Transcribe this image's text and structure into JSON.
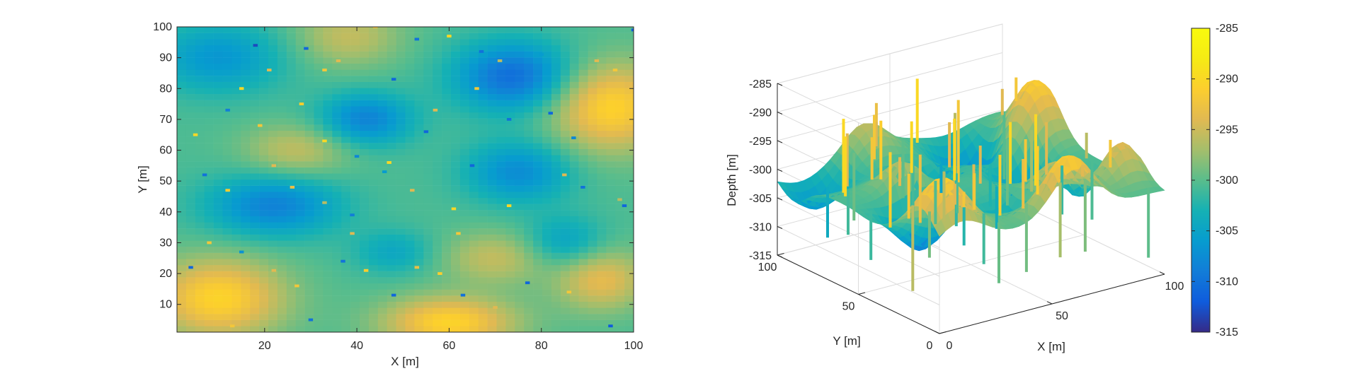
{
  "chart_data": [
    {
      "type": "heatmap",
      "title": "",
      "xlabel": "X [m]",
      "ylabel": "Y [m]",
      "xlim": [
        1,
        100
      ],
      "ylim": [
        1,
        100
      ],
      "xticks": [
        20,
        40,
        60,
        80,
        100
      ],
      "yticks": [
        10,
        20,
        30,
        40,
        50,
        60,
        70,
        80,
        90,
        100
      ],
      "colormap": "parula",
      "clim": [
        -315,
        -285
      ],
      "grid": false,
      "field": {
        "base": -300.5,
        "description_free_bumps": [
          {
            "x": 10,
            "y": 12,
            "amp": 10,
            "sx": 10,
            "sy": 9
          },
          {
            "x": 95,
            "y": 74,
            "amp": 10,
            "sx": 9,
            "sy": 10
          },
          {
            "x": 38,
            "y": 97,
            "amp": 5,
            "sx": 8,
            "sy": 7
          },
          {
            "x": 60,
            "y": 4,
            "amp": 10,
            "sx": 10,
            "sy": 6
          },
          {
            "x": 27,
            "y": 60,
            "amp": 5,
            "sx": 8,
            "sy": 6
          },
          {
            "x": 70,
            "y": 25,
            "amp": 5,
            "sx": 8,
            "sy": 6
          },
          {
            "x": 93,
            "y": 18,
            "amp": 7,
            "sx": 7,
            "sy": 7
          },
          {
            "x": 74,
            "y": 84,
            "amp": -10,
            "sx": 9,
            "sy": 8
          },
          {
            "x": 42,
            "y": 70,
            "amp": -8,
            "sx": 7,
            "sy": 6
          },
          {
            "x": 22,
            "y": 42,
            "amp": -8,
            "sx": 10,
            "sy": 7
          },
          {
            "x": 75,
            "y": 53,
            "amp": -7,
            "sx": 8,
            "sy": 7
          },
          {
            "x": 10,
            "y": 90,
            "amp": -6,
            "sx": 10,
            "sy": 8
          },
          {
            "x": 85,
            "y": 30,
            "amp": -5,
            "sx": 6,
            "sy": 6
          },
          {
            "x": 48,
            "y": 27,
            "amp": -4,
            "sx": 6,
            "sy": 5
          }
        ]
      },
      "outliers": [
        [
          18,
          94,
          -313
        ],
        [
          29,
          93,
          -311
        ],
        [
          36,
          89,
          -294
        ],
        [
          44,
          100,
          -293
        ],
        [
          15,
          80,
          -290
        ],
        [
          33,
          86,
          -292
        ],
        [
          48,
          83,
          -311
        ],
        [
          53,
          96,
          -310
        ],
        [
          60,
          97,
          -290
        ],
        [
          67,
          92,
          -310
        ],
        [
          71,
          89,
          -296
        ],
        [
          80,
          91,
          -306
        ],
        [
          92,
          89,
          -294
        ],
        [
          5,
          65,
          -290
        ],
        [
          12,
          73,
          -309
        ],
        [
          19,
          68,
          -292
        ],
        [
          28,
          75,
          -291
        ],
        [
          33,
          63,
          -290
        ],
        [
          40,
          58,
          -308
        ],
        [
          47,
          56,
          -290
        ],
        [
          55,
          66,
          -311
        ],
        [
          57,
          73,
          -294
        ],
        [
          66,
          80,
          -292
        ],
        [
          73,
          70,
          -310
        ],
        [
          82,
          72,
          -311
        ],
        [
          87,
          64,
          -308
        ],
        [
          96,
          86,
          -292
        ],
        [
          7,
          52,
          -310
        ],
        [
          12,
          47,
          -291
        ],
        [
          22,
          55,
          -294
        ],
        [
          26,
          48,
          -293
        ],
        [
          33,
          43,
          -296
        ],
        [
          39,
          39,
          -309
        ],
        [
          46,
          53,
          -306
        ],
        [
          52,
          47,
          -294
        ],
        [
          61,
          41,
          -290
        ],
        [
          65,
          55,
          -311
        ],
        [
          73,
          42,
          -290
        ],
        [
          85,
          52,
          -294
        ],
        [
          98,
          42,
          -311
        ],
        [
          4,
          22,
          -311
        ],
        [
          8,
          30,
          -292
        ],
        [
          15,
          27,
          -307
        ],
        [
          22,
          21,
          -294
        ],
        [
          27,
          16,
          -292
        ],
        [
          37,
          24,
          -310
        ],
        [
          42,
          21,
          -291
        ],
        [
          48,
          13,
          -311
        ],
        [
          53,
          22,
          -293
        ],
        [
          58,
          20,
          -291
        ],
        [
          63,
          13,
          -310
        ],
        [
          70,
          9,
          -294
        ],
        [
          77,
          17,
          -311
        ],
        [
          86,
          14,
          -292
        ],
        [
          95,
          3,
          -312
        ],
        [
          100,
          99,
          -312
        ],
        [
          13,
          3,
          -292
        ],
        [
          30,
          5,
          -310
        ],
        [
          97,
          44,
          -296
        ],
        [
          62,
          33,
          -292
        ],
        [
          21,
          86,
          -294
        ],
        [
          89,
          48,
          -310
        ],
        [
          39,
          33,
          -294
        ]
      ]
    },
    {
      "type": "surface3d",
      "title": "",
      "xlabel": "X [m]",
      "ylabel": "Y [m]",
      "zlabel": "Depth [m]",
      "xlim": [
        0,
        100
      ],
      "ylim": [
        0,
        100
      ],
      "zlim": [
        -315,
        -285
      ],
      "xticks": [
        0,
        50,
        100
      ],
      "yticks": [
        0,
        50,
        100
      ],
      "zticks": [
        -315,
        -310,
        -305,
        -300,
        -295,
        -290,
        -285
      ],
      "view": {
        "azimuth": -37.5,
        "elevation": 30
      },
      "grid": true,
      "colorbar": {
        "ticks": [
          -285,
          -290,
          -295,
          -300,
          -305,
          -310,
          -315
        ],
        "limits": [
          -315,
          -285
        ],
        "colormap": "parula"
      }
    }
  ]
}
